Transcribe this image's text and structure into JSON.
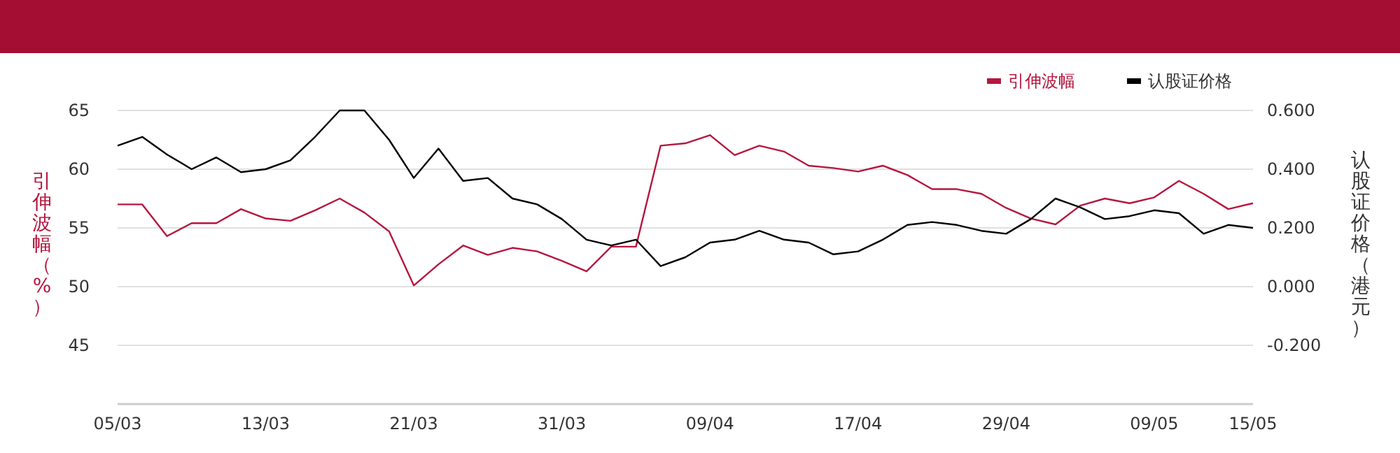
{
  "chart_data": {
    "type": "line",
    "categories": [
      "05/03",
      null,
      null,
      null,
      null,
      null,
      "13/03",
      null,
      null,
      null,
      null,
      null,
      "21/03",
      null,
      null,
      null,
      null,
      null,
      "31/03",
      null,
      null,
      null,
      null,
      null,
      "09/04",
      null,
      null,
      null,
      null,
      null,
      "17/04",
      null,
      null,
      null,
      null,
      null,
      "29/04",
      null,
      null,
      null,
      null,
      null,
      "09/05",
      null,
      null,
      null,
      "15/05"
    ],
    "series": [
      {
        "name": "引伸波幅",
        "color": "#b5173f",
        "values": [
          57.0,
          57.0,
          54.3,
          55.4,
          55.4,
          56.6,
          55.8,
          55.6,
          56.5,
          57.5,
          56.3,
          54.7,
          50.1,
          51.9,
          53.5,
          52.7,
          53.3,
          53.0,
          52.2,
          51.3,
          53.4,
          53.4,
          62.0,
          62.2,
          62.9,
          61.2,
          62.0,
          61.5,
          60.3,
          60.1,
          59.8,
          60.3,
          59.5,
          58.3,
          58.3,
          57.9,
          56.7,
          55.8,
          55.3,
          56.9,
          57.5,
          57.1,
          57.6,
          59.0,
          57.9,
          56.6,
          57.1
        ]
      },
      {
        "name": "认股证价格",
        "color": "#000000",
        "axis": "y2",
        "values": [
          0.48,
          0.51,
          0.45,
          0.4,
          0.44,
          0.39,
          0.4,
          0.43,
          0.51,
          0.6,
          0.6,
          0.5,
          0.37,
          0.47,
          0.36,
          0.37,
          0.3,
          0.28,
          0.23,
          0.16,
          0.14,
          0.16,
          0.07,
          0.1,
          0.15,
          0.16,
          0.19,
          0.16,
          0.15,
          0.11,
          0.12,
          0.16,
          0.21,
          0.22,
          0.21,
          0.19,
          0.18,
          0.23,
          0.3,
          0.27,
          0.23,
          0.24,
          0.26,
          0.25,
          0.18,
          0.21,
          0.2
        ]
      }
    ],
    "ylabel": "引伸波幅（%）",
    "y2label": "认股证价格（港元）",
    "ylim": [
      40,
      65
    ],
    "yticks": [
      45,
      50,
      55,
      60,
      65
    ],
    "y2lim": [
      -0.4,
      0.6
    ],
    "y2ticks": [
      {
        "value": -0.2,
        "label": "-0.200"
      },
      {
        "value": 0,
        "label": "0.000"
      },
      {
        "value": 0.2,
        "label": "0.200"
      },
      {
        "value": 0.4,
        "label": "0.400"
      },
      {
        "value": 0.6,
        "label": "0.600"
      }
    ],
    "grid": "y",
    "legend": "top right"
  }
}
